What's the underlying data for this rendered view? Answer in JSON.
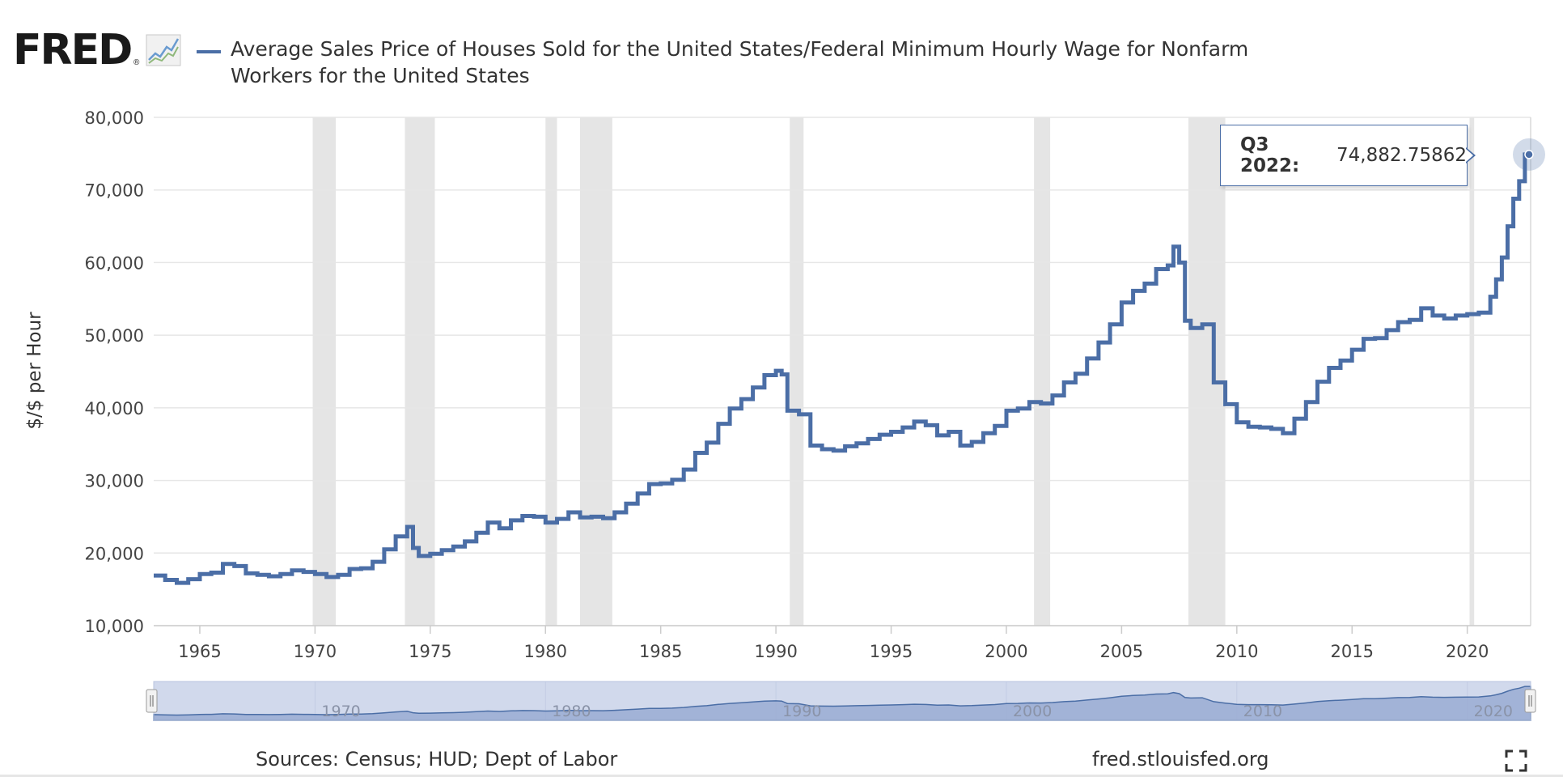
{
  "header": {
    "logo_text": "FRED",
    "logo_reg": "®",
    "title": "Average Sales Price of Houses Sold for the United States/Federal Minimum Hourly Wage for Nonfarm Workers for the United States"
  },
  "tooltip": {
    "label": "Q3 2022:",
    "value": "74,882.75862"
  },
  "footer": {
    "sources": "Sources: Census; HUD; Dept of Labor",
    "site": "fred.stlouisfed.org"
  },
  "colors": {
    "series": "#4b6ea6",
    "recession": "#e5e5e5",
    "navigator_fill": "#9aabd3",
    "navigator_band": "#d1d9ec",
    "grid": "#e6e6e6"
  },
  "chart_data": {
    "type": "line",
    "title": "Average Sales Price of Houses Sold for the United States/Federal Minimum Hourly Wage for Nonfarm Workers for the United States",
    "xlabel": "",
    "ylabel": "$/$ per Hour",
    "xlim": [
      1963.0,
      2022.75
    ],
    "ylim": [
      10000,
      80000
    ],
    "yticks": [
      10000,
      20000,
      30000,
      40000,
      50000,
      60000,
      70000,
      80000
    ],
    "ytick_labels": [
      "10,000",
      "20,000",
      "30,000",
      "40,000",
      "50,000",
      "60,000",
      "70,000",
      "80,000"
    ],
    "xticks": [
      1965,
      1970,
      1975,
      1980,
      1985,
      1990,
      1995,
      2000,
      2005,
      2010,
      2015,
      2020
    ],
    "xtick_labels": [
      "1965",
      "1970",
      "1975",
      "1980",
      "1985",
      "1990",
      "1995",
      "2000",
      "2005",
      "2010",
      "2015",
      "2020"
    ],
    "navigator_labels": [
      "1970",
      "1980",
      "1990",
      "2000",
      "2010",
      "2020"
    ],
    "grid": true,
    "step": true,
    "recessions": [
      [
        1969.9,
        1970.9
      ],
      [
        1973.9,
        1975.2
      ],
      [
        1980.0,
        1980.5
      ],
      [
        1981.5,
        1982.9
      ],
      [
        1990.6,
        1991.2
      ],
      [
        2001.2,
        2001.9
      ],
      [
        2007.9,
        2009.5
      ],
      [
        2020.1,
        2020.3
      ]
    ],
    "series": [
      {
        "name": "",
        "x": [
          1963.0,
          1963.5,
          1964.0,
          1964.5,
          1965.0,
          1965.5,
          1966.0,
          1966.5,
          1967.0,
          1967.5,
          1968.0,
          1968.5,
          1969.0,
          1969.5,
          1970.0,
          1970.5,
          1971.0,
          1971.5,
          1972.0,
          1972.5,
          1973.0,
          1973.5,
          1974.0,
          1974.25,
          1974.5,
          1975.0,
          1975.5,
          1976.0,
          1976.5,
          1977.0,
          1977.5,
          1978.0,
          1978.5,
          1979.0,
          1979.5,
          1980.0,
          1980.5,
          1981.0,
          1981.5,
          1982.0,
          1982.5,
          1983.0,
          1983.5,
          1984.0,
          1984.5,
          1985.0,
          1985.5,
          1986.0,
          1986.5,
          1987.0,
          1987.5,
          1988.0,
          1988.5,
          1989.0,
          1989.5,
          1990.0,
          1990.25,
          1990.5,
          1991.0,
          1991.5,
          1992.0,
          1992.5,
          1993.0,
          1993.5,
          1994.0,
          1994.5,
          1995.0,
          1995.5,
          1996.0,
          1996.5,
          1997.0,
          1997.5,
          1998.0,
          1998.5,
          1999.0,
          1999.5,
          2000.0,
          2000.5,
          2001.0,
          2001.5,
          2002.0,
          2002.5,
          2003.0,
          2003.5,
          2004.0,
          2004.5,
          2005.0,
          2005.5,
          2006.0,
          2006.5,
          2007.0,
          2007.25,
          2007.5,
          2007.75,
          2008.0,
          2008.5,
          2009.0,
          2009.5,
          2010.0,
          2010.5,
          2011.0,
          2011.5,
          2012.0,
          2012.5,
          2013.0,
          2013.5,
          2014.0,
          2014.5,
          2015.0,
          2015.5,
          2016.0,
          2016.5,
          2017.0,
          2017.5,
          2018.0,
          2018.5,
          2019.0,
          2019.5,
          2020.0,
          2020.5,
          2021.0,
          2021.25,
          2021.5,
          2021.75,
          2022.0,
          2022.25,
          2022.5
        ],
        "y": [
          16900,
          16300,
          15900,
          16400,
          17100,
          17300,
          18500,
          18200,
          17200,
          17000,
          16800,
          17100,
          17600,
          17400,
          17100,
          16700,
          17000,
          17800,
          17900,
          18800,
          20500,
          22300,
          23600,
          20700,
          19600,
          19900,
          20400,
          20900,
          21600,
          22800,
          24200,
          23400,
          24500,
          25100,
          25000,
          24200,
          24700,
          25600,
          24900,
          25000,
          24800,
          25600,
          26800,
          28200,
          29500,
          29600,
          30100,
          31500,
          33800,
          35200,
          37800,
          39900,
          41200,
          42800,
          44500,
          45100,
          44600,
          39600,
          39100,
          34800,
          34300,
          34100,
          34700,
          35100,
          35700,
          36300,
          36700,
          37300,
          38100,
          37600,
          36200,
          36700,
          34800,
          35300,
          36500,
          37500,
          39600,
          39900,
          40800,
          40600,
          41700,
          43500,
          44700,
          46800,
          49000,
          51500,
          54500,
          56100,
          57100,
          59100,
          59600,
          62200,
          60000,
          52000,
          51000,
          51500,
          43500,
          40500,
          38000,
          37400,
          37300,
          37100,
          36500,
          38500,
          40800,
          43600,
          45500,
          46500,
          48000,
          49500,
          49600,
          50700,
          51800,
          52100,
          53700,
          52700,
          52300,
          52700,
          52900,
          53100,
          55300,
          57700,
          60700,
          65000,
          68800,
          71200,
          74882.75862
        ]
      }
    ]
  }
}
